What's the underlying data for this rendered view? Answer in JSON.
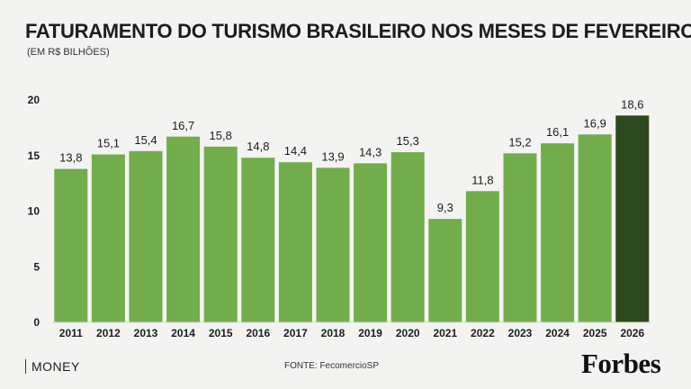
{
  "header": {
    "title": "FATURAMENTO DO TURISMO BRASILEIRO NOS MESES DE FEVEREIRO",
    "subtitle": "(EM R$ BILHÕES)"
  },
  "footer": {
    "section": "MONEY",
    "source": "FONTE: FecomercioSP",
    "brand": "Forbes"
  },
  "colors": {
    "bar": "#72ac4d",
    "highlight": "#2d4a1e",
    "background": "#f3f3f1",
    "text": "#1c1c1c"
  },
  "chart_data": {
    "type": "bar",
    "title": "FATURAMENTO DO TURISMO BRASILEIRO NOS MESES DE FEVEREIRO",
    "subtitle": "(EM R$ BILHÕES)",
    "xlabel": "",
    "ylabel": "",
    "categories": [
      "2011",
      "2012",
      "2013",
      "2014",
      "2015",
      "2016",
      "2017",
      "2018",
      "2019",
      "2020",
      "2021",
      "2022",
      "2023",
      "2024",
      "2025",
      "2026"
    ],
    "values": [
      13.8,
      15.1,
      15.4,
      16.7,
      15.8,
      14.8,
      14.4,
      13.9,
      14.3,
      15.3,
      9.3,
      11.8,
      15.2,
      16.1,
      16.9,
      18.6
    ],
    "value_labels": [
      "13,8",
      "15,1",
      "15,4",
      "16,7",
      "15,8",
      "14,8",
      "14,4",
      "13,9",
      "14,3",
      "15,3",
      "9,3",
      "11,8",
      "15,2",
      "16,1",
      "16,9",
      "18,6"
    ],
    "highlight_category": "2026",
    "ylim": [
      0,
      20
    ],
    "yticks": [
      0,
      5,
      10,
      15,
      20
    ],
    "grid": false,
    "legend": "none"
  }
}
